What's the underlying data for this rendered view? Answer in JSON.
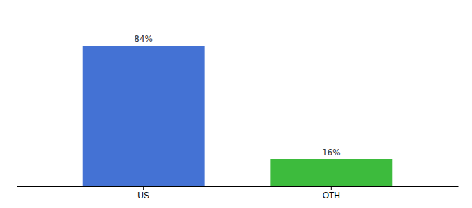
{
  "chart_data": {
    "type": "bar",
    "categories": [
      "US",
      "OTH"
    ],
    "values": [
      84,
      16
    ],
    "value_labels": [
      "84%",
      "16%"
    ],
    "colors": [
      "#4472d4",
      "#3dbb3d"
    ],
    "ylim": [
      0,
      100
    ],
    "data_labels": true,
    "tick_labels": "x"
  }
}
